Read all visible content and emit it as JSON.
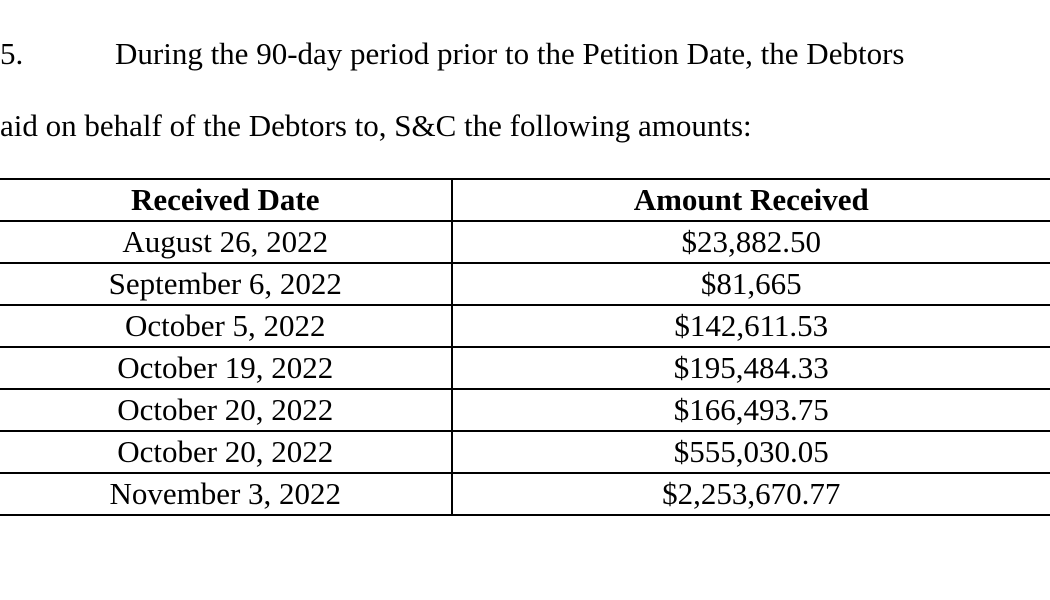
{
  "paragraph": {
    "number": "5.",
    "line1": "During the 90-day period prior to the Petition Date, the Debtors",
    "line2": "aid on behalf of the Debtors to, S&C the following amounts:"
  },
  "table": {
    "type": "table",
    "columns": [
      "Received Date",
      "Amount Received"
    ],
    "rows": [
      [
        "August 26, 2022",
        "$23,882.50"
      ],
      [
        "September 6, 2022",
        "$81,665"
      ],
      [
        "October 5, 2022",
        "$142,611.53"
      ],
      [
        "October 19, 2022",
        "$195,484.33"
      ],
      [
        "October 20, 2022",
        "$166,493.75"
      ],
      [
        "October 20, 2022",
        "$555,030.05"
      ],
      [
        "November 3, 2022",
        "$2,253,670.77"
      ]
    ],
    "border_color": "#000000",
    "background_color": "#ffffff",
    "text_color": "#000000",
    "font_family": "Times New Roman",
    "header_fontsize": 31,
    "cell_fontsize": 31,
    "header_fontweight": "bold",
    "col_widths_pct": [
      43,
      57
    ],
    "text_align": "center"
  }
}
